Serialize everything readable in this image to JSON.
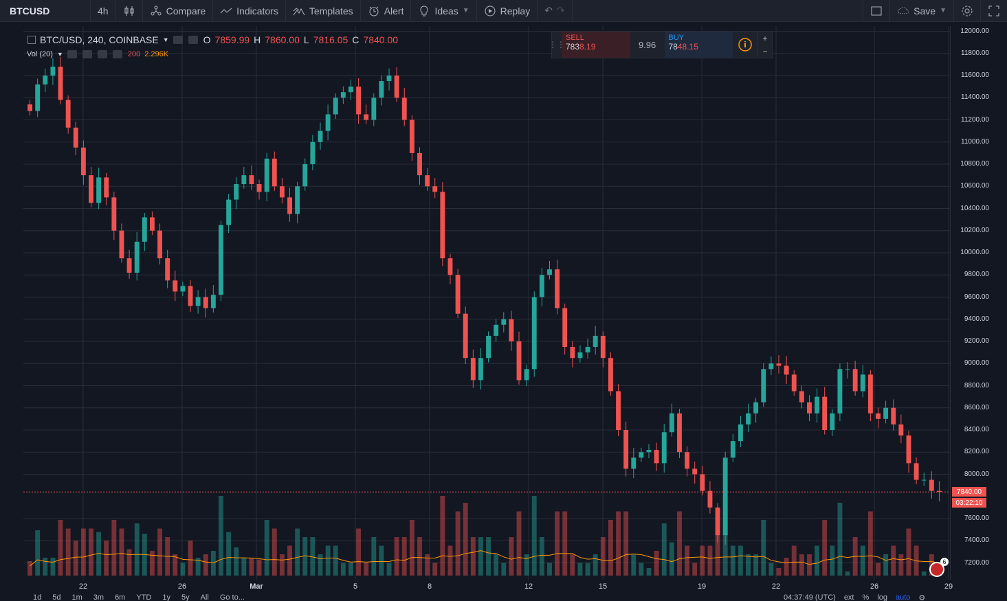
{
  "toolbar": {
    "symbol": "BTCUSD",
    "interval": "4h",
    "compare": "Compare",
    "indicators": "Indicators",
    "templates": "Templates",
    "alert": "Alert",
    "ideas": "Ideas",
    "replay": "Replay",
    "save": "Save"
  },
  "legend": {
    "title": "BTC/USD, 240, COINBASE",
    "o_label": "O",
    "o_value": "7859.99",
    "h_label": "H",
    "h_value": "7860.00",
    "l_label": "L",
    "l_value": "7816.05",
    "c_label": "C",
    "c_value": "7840.00",
    "vol_label": "Vol (20)",
    "vol_value1": "200",
    "vol_value2": "2.296K"
  },
  "trade_panel": {
    "sell_label": "SELL",
    "sell_price_a": "783",
    "sell_price_b": "8.19",
    "spread": "9.96",
    "buy_label": "BUY",
    "buy_price_a": "78",
    "buy_price_b": "48.15",
    "plus": "+",
    "minus": "−"
  },
  "price_axis": {
    "labels": [
      "12000.00",
      "11800.00",
      "11600.00",
      "11400.00",
      "11200.00",
      "11000.00",
      "10800.00",
      "10600.00",
      "10400.00",
      "10200.00",
      "10000.00",
      "9800.00",
      "9600.00",
      "9400.00",
      "9200.00",
      "9000.00",
      "8800.00",
      "8600.00",
      "8400.00",
      "8200.00",
      "8000.00",
      "7600.00",
      "7400.00",
      "7200.00"
    ],
    "last_price": "7840.00",
    "countdown": "03:22:10"
  },
  "time_axis": {
    "labels": [
      "22",
      "26",
      "Mar",
      "5",
      "8",
      "12",
      "15",
      "19",
      "22",
      "26"
    ],
    "trailing": "29"
  },
  "bottom_bar": {
    "ranges": [
      "1d",
      "5d",
      "1m",
      "3m",
      "6m",
      "YTD",
      "1y",
      "5y",
      "All",
      "Go to..."
    ],
    "clock": "04:37:49 (UTC)",
    "ext": "ext",
    "pct": "%",
    "log": "log",
    "auto": "auto"
  },
  "badge_count": "6",
  "colors": {
    "up": "#26a69a",
    "down": "#ef5350",
    "bg": "#131722",
    "grid": "#2a2e39",
    "accent": "#2962ff",
    "vol_ma": "#ff9800"
  },
  "chart_data": {
    "type": "candlestick",
    "ylim": [
      7200,
      12000
    ],
    "series": [
      {
        "name": "BTC/USD",
        "close": [
          11280,
          11520,
          11600,
          11680,
          11380,
          11130,
          10950,
          10700,
          10450,
          10680,
          10500,
          10200,
          9950,
          9820,
          10100,
          10320,
          10200,
          9950,
          9750,
          9650,
          9700,
          9520,
          9600,
          9500,
          9620,
          10250,
          10480,
          10620,
          10700,
          10620,
          10550,
          10850,
          10600,
          10500,
          10350,
          10600,
          10800,
          11000,
          11100,
          11250,
          11400,
          11450,
          11500,
          11250,
          11200,
          11400,
          11550,
          11600,
          11400,
          11200,
          10900,
          10700,
          10600,
          10550,
          9950,
          9800,
          9450,
          9050,
          8850,
          9050,
          9250,
          9350,
          9400,
          9200,
          8850,
          8950,
          9600,
          9800,
          9850,
          9500,
          9150,
          9050,
          9100,
          9150,
          9250,
          9050,
          8750,
          8400,
          8050,
          8150,
          8200,
          8220,
          8100,
          8380,
          8550,
          8200,
          8050,
          8000,
          7850,
          7700,
          7450,
          8150,
          8300,
          8450,
          8550,
          8650,
          8950,
          9000,
          8980,
          8900,
          8750,
          8650,
          8550,
          8700,
          8400,
          8550,
          8950,
          8950,
          8750,
          8900,
          8550,
          8500,
          8600,
          8450,
          8350,
          8100,
          7950,
          7950,
          7850,
          7840
        ]
      }
    ],
    "volume_series": {
      "name": "Vol (20)"
    }
  }
}
